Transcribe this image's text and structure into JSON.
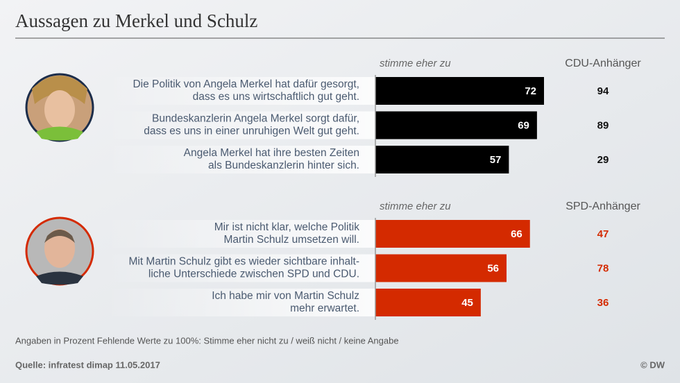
{
  "title": "Aussagen zu Merkel und Schulz",
  "chart_data": [
    {
      "type": "bar",
      "orientation": "horizontal",
      "value_header": "stimme eher zu",
      "categories": [
        [
          "Die Politik von Angela Merkel hat dafür gesorgt,",
          "dass es uns wirtschaftlich gut geht."
        ],
        [
          "Bundeskanzlerin Angela Merkel sorgt dafür,",
          "dass es uns in einer unruhigen Welt gut geht."
        ],
        [
          "Angela Merkel hat ihre besten Zeiten",
          "als Bundeskanzlerin hinter sich."
        ]
      ],
      "values": [
        72,
        69,
        57
      ],
      "color": "#000000",
      "xlim": [
        0,
        100
      ],
      "supporters": {
        "name": "CDU-Anhänger",
        "values": [
          94,
          89,
          29
        ],
        "color": "#111111"
      }
    },
    {
      "type": "bar",
      "orientation": "horizontal",
      "value_header": "stimme eher zu",
      "categories": [
        [
          "Mir ist nicht klar, welche Politik",
          "Martin Schulz umsetzen will."
        ],
        [
          "Mit Martin Schulz gibt es wieder sichtbare inhalt-",
          "liche Unterschiede zwischen SPD und CDU."
        ],
        [
          "Ich habe mir von Martin Schulz",
          "mehr erwartet."
        ]
      ],
      "values": [
        66,
        56,
        45
      ],
      "color": "#d42a00",
      "xlim": [
        0,
        100
      ],
      "supporters": {
        "name": "SPD-Anhänger",
        "values": [
          47,
          78,
          36
        ],
        "color": "#d42a00"
      }
    }
  ],
  "note": "Angaben in Prozent Fehlende Werte zu 100%: Stimme eher nicht zu / weiß nicht / keine Angabe",
  "source": "Quelle: infratest dimap 11.05.2017",
  "credit": "© DW"
}
